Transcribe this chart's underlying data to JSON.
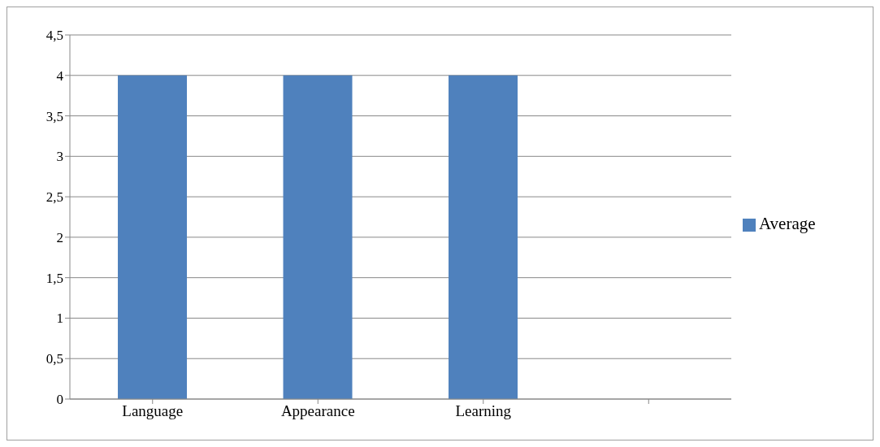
{
  "chart_data": {
    "type": "bar",
    "categories": [
      "Language",
      "Appearance",
      "Learning",
      null
    ],
    "series": [
      {
        "name": "Average",
        "color": "#4f81bd",
        "values": [
          4,
          4,
          4,
          null
        ]
      }
    ],
    "ylim": [
      0,
      4.5
    ],
    "yticks": [
      0,
      {
        "value": 0.5,
        "label": "0,5"
      },
      1,
      {
        "value": 1.5,
        "label": "1,5"
      },
      2,
      {
        "value": 2.5,
        "label": "2,5"
      },
      3,
      {
        "value": 3.5,
        "label": "3,5"
      },
      4,
      {
        "value": 4.5,
        "label": "4,5"
      }
    ],
    "grid": "y",
    "legend": "right"
  }
}
